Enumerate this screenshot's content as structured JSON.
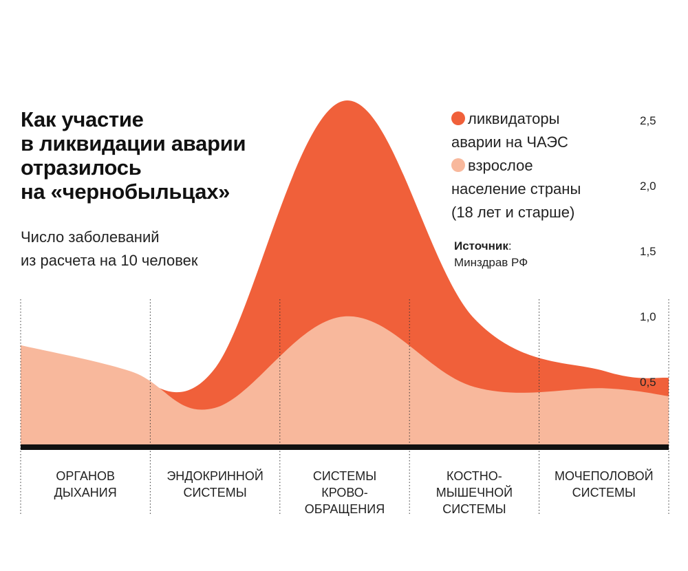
{
  "chart_data": {
    "type": "area",
    "title_lines": [
      "Как участие",
      "в ликвидации аварии",
      "отразилось",
      "на «чернобыльцах»"
    ],
    "subtitle_lines": [
      "Число заболеваний",
      "из расчета на 10 человек"
    ],
    "categories": [
      {
        "lines": [
          "ОРГАНОВ",
          "ДЫХАНИЯ"
        ]
      },
      {
        "lines": [
          "ЭНДОКРИННОЙ",
          "СИСТЕМЫ"
        ]
      },
      {
        "lines": [
          "СИСТЕМЫ",
          "КРОВО-",
          "ОБРАЩЕНИЯ"
        ]
      },
      {
        "lines": [
          "КОСТНО-",
          "МЫШЕЧНОЙ",
          "СИСТЕМЫ"
        ]
      },
      {
        "lines": [
          "МОЧЕПОЛОВОЙ",
          "СИСТЕМЫ"
        ]
      }
    ],
    "series": [
      {
        "name": "ликвидаторы аварии на ЧАЭС",
        "legend_lines": [
          "ликвидаторы",
          "аварии на ЧАЭС"
        ],
        "color": "#F0603A",
        "values": [
          0.55,
          0.6,
          2.65,
          0.98,
          0.58
        ],
        "end_value": 0.53
      },
      {
        "name": "взрослое население страны (18 лет и старше)",
        "legend_lines": [
          "взрослое",
          "население страны",
          "(18 лет и старше)"
        ],
        "color": "#F8B89C",
        "values": [
          0.78,
          0.3,
          1.0,
          0.46,
          0.45
        ],
        "end_value": 0.39
      }
    ],
    "yticks": [
      "0,5",
      "1,0",
      "1,5",
      "2,0",
      "2,5"
    ],
    "ytick_values": [
      0.5,
      1.0,
      1.5,
      2.0,
      2.5
    ],
    "ylim": [
      0,
      2.75
    ]
  },
  "source": {
    "label": "Источник",
    "text": "Минздрав РФ"
  },
  "colors": {
    "baseline": "#111111",
    "divider": "#333333"
  }
}
